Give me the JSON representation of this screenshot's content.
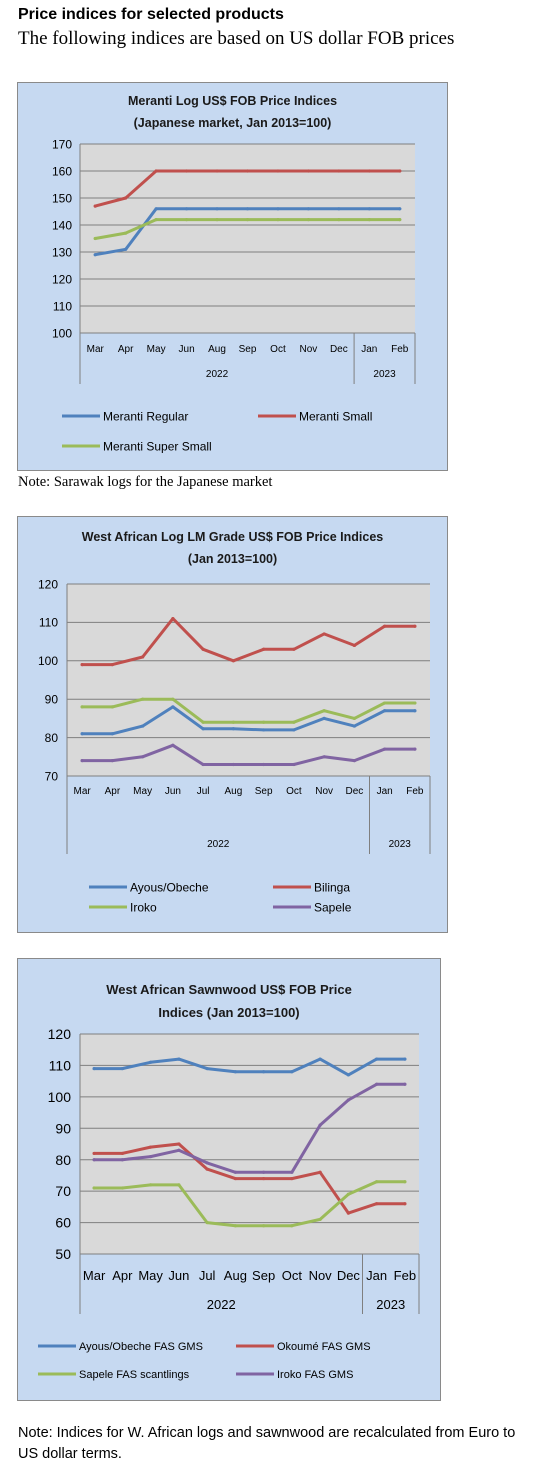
{
  "header": {
    "title": "Price indices for selected products",
    "subtitle": "The following indices are based on US dollar FOB prices"
  },
  "notes": {
    "note1": "Note: Sarawak logs for the Japanese market",
    "note2": "Note: Indices for W. African logs and sawnwood are recalculated from Euro to US dollar terms."
  },
  "colors": {
    "panel_bg": "#c6d9f1",
    "plot_bg": "#d9d9d9",
    "blue": "#4f81bd",
    "red": "#c0504d",
    "green": "#9bbb59",
    "purple": "#8064a2"
  },
  "chart_data": [
    {
      "type": "line",
      "title": "Meranti Log US$ FOB Price Indices",
      "subtitle": "(Japanese market, Jan 2013=100)",
      "categories": [
        "Mar",
        "Apr",
        "May",
        "Jun",
        "Aug",
        "Sep",
        "Oct",
        "Nov",
        "Dec",
        "Jan",
        "Feb"
      ],
      "year_groups": [
        {
          "label": "2022",
          "count": 9
        },
        {
          "label": "2023",
          "count": 2
        }
      ],
      "ylim": [
        100,
        170
      ],
      "yticks": [
        100,
        110,
        120,
        130,
        140,
        150,
        160,
        170
      ],
      "grid": true,
      "legend_position": "bottom",
      "series": [
        {
          "name": "Meranti Regular",
          "color": "#4f81bd",
          "values": [
            129,
            131,
            146,
            146,
            146,
            146,
            146,
            146,
            146,
            146,
            146
          ]
        },
        {
          "name": "Meranti Small",
          "color": "#c0504d",
          "values": [
            147,
            150,
            160,
            160,
            160,
            160,
            160,
            160,
            160,
            160,
            160
          ]
        },
        {
          "name": "Meranti Super Small",
          "color": "#9bbb59",
          "values": [
            135,
            137,
            142,
            142,
            142,
            142,
            142,
            142,
            142,
            142,
            142
          ]
        }
      ]
    },
    {
      "type": "line",
      "title": "West African Log LM Grade US$ FOB Price Indices",
      "subtitle": "(Jan 2013=100)",
      "categories": [
        "Mar",
        "Apr",
        "May",
        "Jun",
        "Jul",
        "Aug",
        "Sep",
        "Oct",
        "Nov",
        "Dec",
        "Jan",
        "Feb"
      ],
      "year_groups": [
        {
          "label": "2022",
          "count": 10
        },
        {
          "label": "2023",
          "count": 2
        }
      ],
      "ylim": [
        70,
        120
      ],
      "yticks": [
        70,
        80,
        90,
        100,
        110,
        120
      ],
      "grid": true,
      "legend_position": "bottom",
      "series": [
        {
          "name": "Ayous/Obeche",
          "color": "#4f81bd",
          "values": [
            81,
            81,
            83,
            88,
            82.3,
            82.3,
            82,
            82,
            85,
            83,
            87,
            87
          ]
        },
        {
          "name": "Bilinga",
          "color": "#c0504d",
          "values": [
            99,
            99,
            101,
            111,
            103,
            100,
            103,
            103,
            107,
            104,
            109,
            109
          ]
        },
        {
          "name": "Iroko",
          "color": "#9bbb59",
          "values": [
            88,
            88,
            90,
            90,
            84,
            84,
            84,
            84,
            87,
            85,
            89,
            89
          ]
        },
        {
          "name": "Sapele",
          "color": "#8064a2",
          "values": [
            74,
            74,
            75,
            78,
            73,
            73,
            73,
            73,
            75,
            74,
            77,
            77
          ]
        }
      ]
    },
    {
      "type": "line",
      "title": "West African Sawnwood US$ FOB Price",
      "subtitle": "Indices (Jan 2013=100)",
      "categories": [
        "Mar",
        "Apr",
        "May",
        "Jun",
        "Jul",
        "Aug",
        "Sep",
        "Oct",
        "Nov",
        "Dec",
        "Jan",
        "Feb"
      ],
      "year_groups": [
        {
          "label": "2022",
          "count": 10
        },
        {
          "label": "2023",
          "count": 2
        }
      ],
      "ylim": [
        50,
        120
      ],
      "yticks": [
        50,
        60,
        70,
        80,
        90,
        100,
        110,
        120
      ],
      "grid": true,
      "legend_position": "bottom",
      "series": [
        {
          "name": "Ayous/Obeche FAS GMS",
          "color": "#4f81bd",
          "values": [
            109,
            109,
            111,
            112,
            109,
            108,
            108,
            108,
            112,
            107,
            112,
            112
          ]
        },
        {
          "name": "Okoumé FAS GMS",
          "color": "#c0504d",
          "values": [
            82,
            82,
            84,
            85,
            77,
            74,
            74,
            74,
            76,
            63,
            66,
            66
          ]
        },
        {
          "name": "Sapele FAS scantlings",
          "color": "#9bbb59",
          "values": [
            71,
            71,
            72,
            72,
            60,
            59,
            59,
            59,
            61,
            69,
            73,
            73
          ]
        },
        {
          "name": "Iroko FAS GMS",
          "color": "#8064a2",
          "values": [
            80,
            80,
            81,
            83,
            79,
            76,
            76,
            76,
            91,
            99,
            104,
            104
          ]
        }
      ]
    }
  ]
}
